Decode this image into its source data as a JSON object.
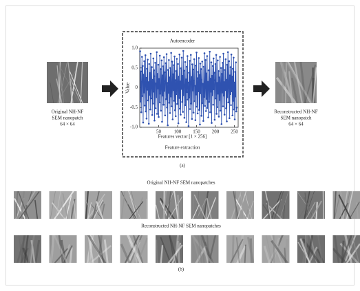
{
  "chart_data": {
    "type": "line",
    "title": "Autoencoder",
    "x_label": "Features vector [1 × 256]",
    "y_label": "Value",
    "color": "#2f52b0",
    "xlim": [
      0,
      260
    ],
    "xticks": [
      50,
      100,
      150,
      200,
      250
    ],
    "ylim": [
      -1,
      1
    ],
    "yticks": [
      {
        "value": 1,
        "label": "1.0"
      },
      0.5,
      0,
      -0.5,
      {
        "value": -1,
        "label": "-1.0"
      }
    ],
    "x": [
      1,
      2,
      3,
      4,
      5,
      6,
      7,
      8,
      9,
      10,
      11,
      12,
      13,
      14,
      15,
      16,
      17,
      18,
      19,
      20,
      21,
      22,
      23,
      24,
      25,
      26,
      27,
      28,
      29,
      30,
      31,
      32,
      33,
      34,
      35,
      36,
      37,
      38,
      39,
      40,
      41,
      42,
      43,
      44,
      45,
      46,
      47,
      48,
      49,
      50,
      51,
      52,
      53,
      54,
      55,
      56,
      57,
      58,
      59,
      60,
      61,
      62,
      63,
      64,
      65,
      66,
      67,
      68,
      69,
      70,
      71,
      72,
      73,
      74,
      75,
      76,
      77,
      78,
      79,
      80,
      81,
      82,
      83,
      84,
      85,
      86,
      87,
      88,
      89,
      90,
      91,
      92,
      93,
      94,
      95,
      96,
      97,
      98,
      99,
      100,
      101,
      102,
      103,
      104,
      105,
      106,
      107,
      108,
      109,
      110,
      111,
      112,
      113,
      114,
      115,
      116,
      117,
      118,
      119,
      120,
      121,
      122,
      123,
      124,
      125,
      126,
      127,
      128,
      129,
      130,
      131,
      132,
      133,
      134,
      135,
      136,
      137,
      138,
      139,
      140,
      141,
      142,
      143,
      144,
      145,
      146,
      147,
      148,
      149,
      150,
      151,
      152,
      153,
      154,
      155,
      156,
      157,
      158,
      159,
      160,
      161,
      162,
      163,
      164,
      165,
      166,
      167,
      168,
      169,
      170,
      171,
      172,
      173,
      174,
      175,
      176,
      177,
      178,
      179,
      180,
      181,
      182,
      183,
      184,
      185,
      186,
      187,
      188,
      189,
      190,
      191,
      192,
      193,
      194,
      195,
      196,
      197,
      198,
      199,
      200,
      201,
      202,
      203,
      204,
      205,
      206,
      207,
      208,
      209,
      210,
      211,
      212,
      213,
      214,
      215,
      216,
      217,
      218,
      219,
      220,
      221,
      222,
      223,
      224,
      225,
      226,
      227,
      228,
      229,
      230,
      231,
      232,
      233,
      234,
      235,
      236,
      237,
      238,
      239,
      240,
      241,
      242,
      243,
      244,
      245,
      246,
      247,
      248,
      249,
      250,
      251,
      252,
      253,
      254,
      255,
      256
    ],
    "values": [
      0.92,
      -0.35,
      0.41,
      -0.62,
      0.15,
      0.78,
      -0.21,
      0.55,
      -0.88,
      0.33,
      -0.12,
      0.67,
      -0.45,
      0.08,
      0.82,
      -0.6,
      0.25,
      -0.78,
      0.48,
      -0.05,
      0.71,
      -0.32,
      0.14,
      -0.91,
      0.6,
      -0.18,
      0.37,
      -0.55,
      0.86,
      -0.27,
      0.03,
      0.52,
      -0.69,
      0.2,
      -0.4,
      0.74,
      -0.1,
      0.44,
      -0.83,
      0.29,
      0.63,
      -0.52,
      0.11,
      -0.24,
      0.9,
      -0.66,
      0.35,
      -0.02,
      0.58,
      -0.74,
      0.22,
      -0.37,
      0.81,
      -0.15,
      0.47,
      -0.58,
      0.06,
      0.69,
      -0.86,
      0.31,
      -0.2,
      0.54,
      -0.43,
      0.77,
      -0.08,
      0.39,
      -0.7,
      0.17,
      0.62,
      -0.29,
      0.85,
      -0.5,
      0.12,
      -0.95,
      0.45,
      -0.13,
      0.7,
      -0.38,
      0.26,
      -0.64,
      0.5,
      -0.22,
      0.88,
      -0.47,
      0.04,
      0.66,
      -0.8,
      0.34,
      -0.06,
      0.57,
      -0.33,
      0.79,
      -0.57,
      0.19,
      -0.72,
      0.42,
      -0.16,
      0.73,
      -0.41,
      0.09,
      0.6,
      -0.9,
      0.28,
      -0.26,
      0.84,
      -0.53,
      0.16,
      -0.68,
      0.49,
      -0.03,
      0.76,
      -0.36,
      0.3,
      -0.61,
      0.93,
      -0.19,
      0.43,
      -0.76,
      0.07,
      0.65,
      -0.44,
      0.21,
      -0.87,
      0.53,
      -0.11,
      0.8,
      -0.3,
      0.13,
      -0.97,
      0.38,
      -0.25,
      0.68,
      -0.54,
      0.1,
      0.83,
      -0.4,
      0.27,
      -0.79,
      0.59,
      -0.07,
      0.46,
      -0.63,
      0.18,
      0.72,
      -0.34,
      0.05,
      -0.82,
      0.56,
      -0.17,
      0.89,
      -0.48,
      0.24,
      -0.65,
      0.4,
      -0.09,
      0.75,
      -0.56,
      0.32,
      -0.93,
      0.61,
      -0.14,
      0.47,
      -0.71,
      0.2,
      0.66,
      -0.39,
      0.1,
      -0.84,
      0.53,
      -0.23,
      0.87,
      -0.46,
      0.02,
      0.7,
      -0.59,
      0.36,
      -0.28,
      0.8,
      -0.51,
      0.15,
      -0.75,
      0.44,
      0.04,
      -0.36,
      0.91,
      -0.62,
      0.23,
      -0.1,
      0.64,
      -0.89,
      0.3,
      -0.19,
      0.55,
      -0.43,
      0.74,
      -0.04,
      0.38,
      -0.81,
      0.19,
      0.6,
      -0.27,
      0.83,
      -0.66,
      0.12,
      -0.49,
      0.69,
      -0.15,
      0.42,
      -0.73,
      0.26,
      -0.31,
      0.78,
      -0.58,
      0.07,
      0.5,
      -0.92,
      0.35,
      -0.12,
      0.63,
      -0.47,
      0.86,
      -0.2,
      0.14,
      -0.68,
      0.45,
      -0.06,
      0.72,
      -0.52,
      0.2,
      -0.85,
      0.58,
      -0.24,
      0.9,
      -0.37,
      0.05,
      0.67,
      -0.77,
      0.31,
      -0.16,
      0.52,
      -0.44,
      0.84,
      -0.09,
      0.28,
      -0.7,
      0.48,
      -0.33,
      0.76,
      -0.55,
      0.13,
      -0.8,
      0.4,
      -0.22,
      0.64,
      -0.6,
      -0.5
    ]
  },
  "panel_a": {
    "left_caption": [
      "Original NH-NF",
      "SEM nanopatch",
      "64 × 64"
    ],
    "box_caption": "Feature extraction",
    "right_caption": [
      "Reconstructed NH-NF",
      "SEM  nanopatch",
      "64 × 64"
    ],
    "label": "(a)"
  },
  "panel_b": {
    "original_title": "Original NH-NF SEM nanopatches",
    "reconstructed_title": "Reconstructed NH-NF SEM nanopatches",
    "label": "(b)"
  }
}
